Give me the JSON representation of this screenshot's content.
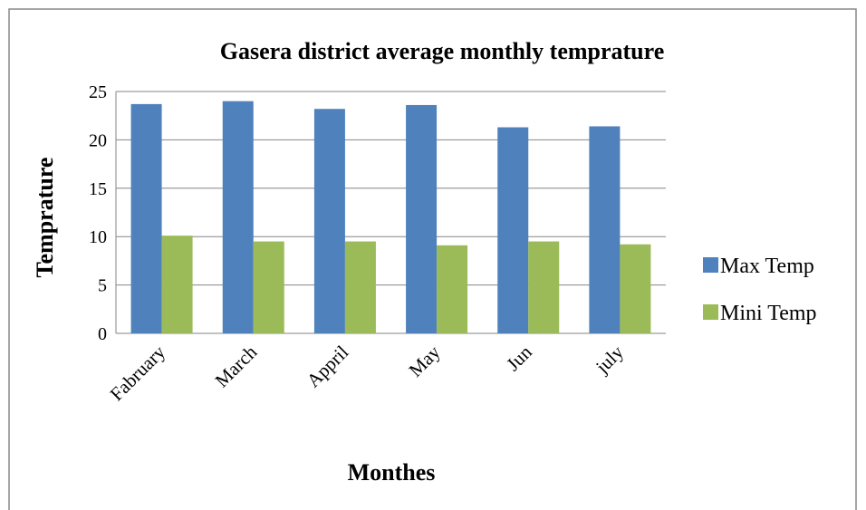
{
  "chart_data": {
    "type": "bar",
    "title": "Gasera district average monthly temprature",
    "x_label": "Monthes",
    "y_label": "Temprature",
    "categories": [
      "Fabruary",
      "March",
      "Appril",
      "May",
      "Jun",
      "july"
    ],
    "series": [
      {
        "name": "Max Temp",
        "color": "#4f81bd",
        "values": [
          23.7,
          24.0,
          23.2,
          23.6,
          21.3,
          21.4
        ]
      },
      {
        "name": "Mini Temp",
        "color": "#9bbb59",
        "values": [
          10.1,
          9.5,
          9.5,
          9.1,
          9.5,
          9.2
        ]
      }
    ],
    "ylim": [
      0,
      25
    ],
    "yticks": [
      0,
      5,
      10,
      15,
      20,
      25
    ],
    "grid": true,
    "legend": "right"
  }
}
